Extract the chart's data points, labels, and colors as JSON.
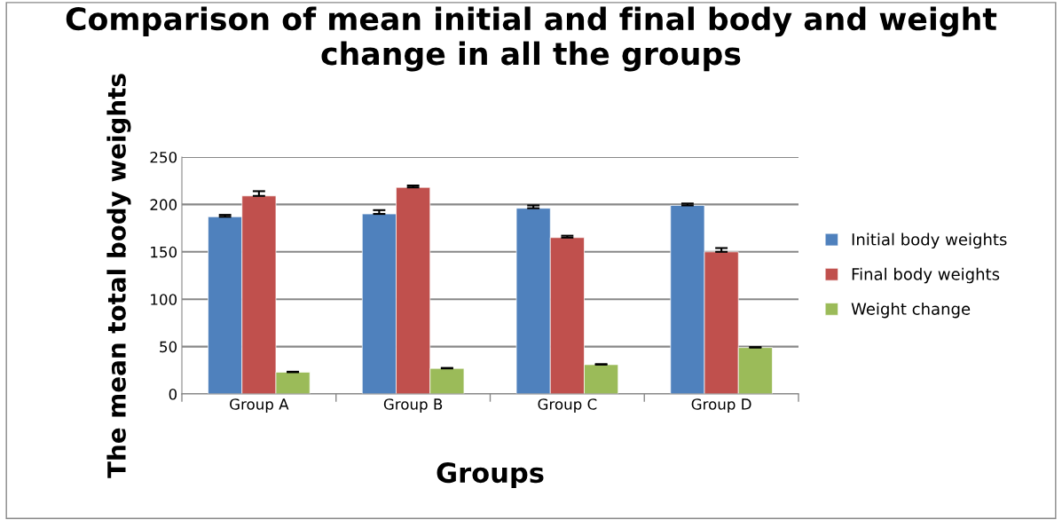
{
  "chart_data": {
    "type": "bar",
    "title": "Comparison of mean initial and final body and weight change in all the groups",
    "xlabel": "Groups",
    "ylabel": "The mean total body weights",
    "categories": [
      "Group A",
      "Group B",
      "Group C",
      "Group D"
    ],
    "series": [
      {
        "name": "Initial body weights",
        "color": "#4f81bd",
        "values": [
          187,
          190,
          196,
          199
        ],
        "errors": [
          [
            187,
            189
          ],
          [
            190,
            194
          ],
          [
            196,
            199
          ],
          [
            199,
            201
          ]
        ]
      },
      {
        "name": "Final body weights",
        "color": "#c0504d",
        "values": [
          209,
          218,
          165,
          150
        ],
        "errors": [
          [
            209,
            214
          ],
          [
            218,
            220
          ],
          [
            165,
            167
          ],
          [
            150,
            154
          ]
        ]
      },
      {
        "name": "Weight change",
        "color": "#9bbb59",
        "values": [
          23,
          27,
          31,
          49
        ],
        "errors": [
          [
            23,
            23.5
          ],
          [
            27,
            27.5
          ],
          [
            31,
            31.5
          ],
          [
            49,
            49.5
          ]
        ]
      }
    ],
    "ylim": [
      0,
      250
    ],
    "yticks": [
      0,
      50,
      100,
      150,
      200,
      250
    ],
    "grid": "y",
    "legend": "right"
  }
}
